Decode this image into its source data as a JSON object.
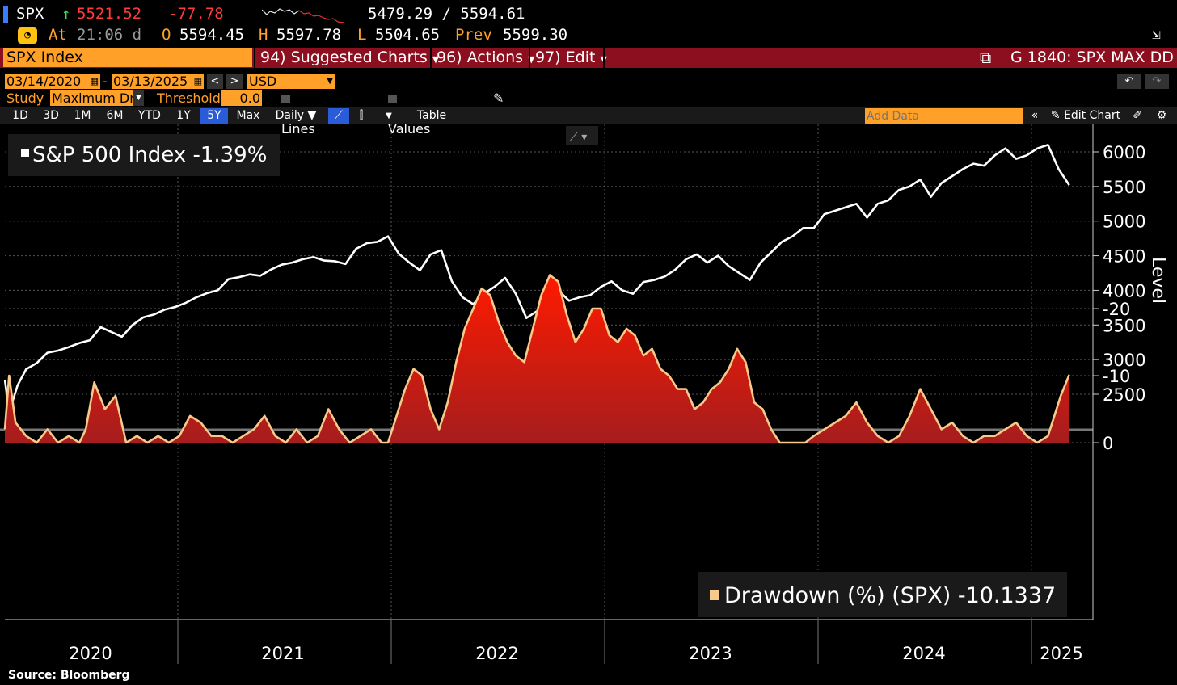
{
  "quote": {
    "symbol": "SPX",
    "last": "5521.52",
    "change": "-77.78",
    "range": "5479.29 / 5594.61",
    "at_label": "At",
    "time": "21:06 d",
    "open_label": "O",
    "open": "5594.45",
    "high_label": "H",
    "high": "5597.78",
    "low_label": "L",
    "low": "5504.65",
    "prev_label": "Prev",
    "prev": "5599.30"
  },
  "toolbar": {
    "ticker": "SPX Index",
    "suggested": "94) Suggested Charts",
    "actions": "96) Actions",
    "edit": "97) Edit",
    "chart_code": "G 1840: SPX MAX DD"
  },
  "settings": {
    "start_date": "03/14/2020",
    "dash": "-",
    "end_date": "03/13/2025",
    "currency": "USD",
    "study_label": "Study",
    "study_value": "Maximum Dr",
    "threshold_label": "Threshold",
    "threshold_value": "0.0",
    "show_lines": "Show Lines",
    "show_values": "Show Values"
  },
  "tabs": {
    "periods": [
      "1D",
      "3D",
      "1M",
      "6M",
      "YTD",
      "1Y",
      "5Y",
      "Max"
    ],
    "active": "5Y",
    "frequency": "Daily",
    "table": "Table",
    "add_data_placeholder": "Add Data",
    "edit_chart": "Edit Chart"
  },
  "source": "Source: Bloomberg",
  "colors": {
    "background": "#000000",
    "price_line": "#ffffff",
    "drawdown_line": "#f7c98b",
    "drawdown_fill_top": "#ff1a00",
    "drawdown_fill_bottom": "#b5201a",
    "accent_orange": "#ffa028",
    "toolbar_red": "#8c0f1f"
  },
  "chart_data": [
    {
      "type": "line",
      "legend": "S&P 500 Index -1.39%",
      "ylabel": "Level",
      "yticks": [
        2500,
        3000,
        3500,
        4000,
        4500,
        5000,
        5500,
        6000
      ],
      "ylim": [
        2150,
        6250
      ],
      "xlim": [
        2020.2,
        2025.3
      ],
      "xticks": [
        "2020",
        "2021",
        "2022",
        "2023",
        "2024",
        "2025"
      ],
      "grid": true,
      "legend_position": "top-left",
      "series": [
        {
          "x": [
            2020.2,
            2020.22,
            2020.26,
            2020.3,
            2020.35,
            2020.4,
            2020.45,
            2020.5,
            2020.55,
            2020.6,
            2020.65,
            2020.7,
            2020.75,
            2020.8,
            2020.85,
            2020.9,
            2020.95,
            2021.0,
            2021.05,
            2021.1,
            2021.15,
            2021.2,
            2021.25,
            2021.3,
            2021.35,
            2021.4,
            2021.45,
            2021.5,
            2021.55,
            2021.6,
            2021.65,
            2021.7,
            2021.75,
            2021.8,
            2021.85,
            2021.9,
            2021.95,
            2022.0,
            2022.05,
            2022.1,
            2022.15,
            2022.2,
            2022.25,
            2022.3,
            2022.35,
            2022.4,
            2022.45,
            2022.5,
            2022.55,
            2022.6,
            2022.65,
            2022.7,
            2022.75,
            2022.8,
            2022.85,
            2022.9,
            2022.95,
            2023.0,
            2023.05,
            2023.1,
            2023.15,
            2023.2,
            2023.25,
            2023.3,
            2023.35,
            2023.4,
            2023.45,
            2023.5,
            2023.55,
            2023.6,
            2023.65,
            2023.7,
            2023.75,
            2023.8,
            2023.85,
            2023.9,
            2023.95,
            2024.0,
            2024.05,
            2024.1,
            2024.15,
            2024.2,
            2024.25,
            2024.3,
            2024.35,
            2024.4,
            2024.45,
            2024.5,
            2024.55,
            2024.6,
            2024.65,
            2024.7,
            2024.75,
            2024.8,
            2024.85,
            2024.9,
            2024.95,
            2025.0,
            2025.05,
            2025.1,
            2025.15,
            2025.2
          ],
          "y": [
            2710,
            2240,
            2630,
            2860,
            2950,
            3100,
            3130,
            3180,
            3240,
            3280,
            3470,
            3400,
            3330,
            3500,
            3610,
            3650,
            3720,
            3760,
            3820,
            3900,
            3960,
            4000,
            4160,
            4190,
            4230,
            4210,
            4300,
            4370,
            4400,
            4450,
            4480,
            4430,
            4420,
            4380,
            4600,
            4680,
            4700,
            4780,
            4530,
            4400,
            4290,
            4520,
            4580,
            4130,
            3900,
            3800,
            3950,
            4050,
            4180,
            3950,
            3600,
            3700,
            3950,
            4000,
            3850,
            3900,
            3930,
            4050,
            4130,
            4000,
            3950,
            4120,
            4150,
            4200,
            4300,
            4450,
            4520,
            4400,
            4500,
            4350,
            4250,
            4150,
            4400,
            4550,
            4700,
            4780,
            4900,
            4900,
            5100,
            5150,
            5200,
            5250,
            5050,
            5250,
            5300,
            5450,
            5500,
            5600,
            5350,
            5550,
            5650,
            5750,
            5830,
            5800,
            5950,
            6050,
            5900,
            5950,
            6050,
            6100,
            5750,
            5520
          ],
          "color": "#ffffff"
        }
      ]
    },
    {
      "type": "area",
      "legend": "Drawdown (%) (SPX) -10.1337",
      "yticks": [
        0,
        -10,
        -20
      ],
      "ylim": [
        -26,
        0.8
      ],
      "xlim": [
        2020.2,
        2025.3
      ],
      "grid": true,
      "legend_position": "bottom-right",
      "series": [
        {
          "x": [
            2020.2,
            2020.22,
            2020.25,
            2020.3,
            2020.35,
            2020.4,
            2020.45,
            2020.5,
            2020.55,
            2020.58,
            2020.62,
            2020.67,
            2020.72,
            2020.77,
            2020.82,
            2020.87,
            2020.92,
            2020.97,
            2021.02,
            2021.07,
            2021.12,
            2021.17,
            2021.22,
            2021.27,
            2021.32,
            2021.37,
            2021.42,
            2021.47,
            2021.52,
            2021.57,
            2021.62,
            2021.67,
            2021.72,
            2021.77,
            2021.82,
            2021.87,
            2021.92,
            2021.97,
            2022.0,
            2022.04,
            2022.08,
            2022.12,
            2022.16,
            2022.2,
            2022.24,
            2022.28,
            2022.32,
            2022.36,
            2022.4,
            2022.44,
            2022.48,
            2022.52,
            2022.56,
            2022.6,
            2022.64,
            2022.68,
            2022.72,
            2022.76,
            2022.8,
            2022.84,
            2022.88,
            2022.92,
            2022.96,
            2023.0,
            2023.04,
            2023.08,
            2023.12,
            2023.16,
            2023.2,
            2023.24,
            2023.28,
            2023.32,
            2023.36,
            2023.4,
            2023.44,
            2023.48,
            2023.52,
            2023.56,
            2023.6,
            2023.64,
            2023.68,
            2023.72,
            2023.76,
            2023.8,
            2023.84,
            2023.88,
            2023.92,
            2023.96,
            2024.0,
            2024.05,
            2024.1,
            2024.15,
            2024.2,
            2024.25,
            2024.3,
            2024.35,
            2024.4,
            2024.45,
            2024.5,
            2024.55,
            2024.6,
            2024.65,
            2024.7,
            2024.75,
            2024.8,
            2024.85,
            2024.9,
            2024.95,
            2025.0,
            2025.05,
            2025.1,
            2025.13,
            2025.16,
            2025.2
          ],
          "y": [
            -2,
            -10,
            -3,
            -1,
            0,
            -2,
            0,
            -1,
            0,
            -2,
            -9,
            -5,
            -7,
            0,
            -1,
            0,
            -1,
            0,
            -1,
            -4,
            -3,
            -1,
            -1,
            0,
            -1,
            -2,
            -4,
            -1,
            0,
            -2,
            0,
            -1,
            -5,
            -2,
            0,
            -1,
            -2,
            0,
            0,
            -4,
            -8,
            -11,
            -10,
            -5,
            -2,
            -6,
            -12,
            -17,
            -20,
            -23,
            -22,
            -18,
            -15,
            -13,
            -12,
            -17,
            -22,
            -25,
            -24,
            -19,
            -15,
            -17,
            -20,
            -20,
            -16,
            -15,
            -17,
            -16,
            -13,
            -14,
            -11,
            -10,
            -8,
            -8,
            -5,
            -6,
            -8,
            -9,
            -11,
            -14,
            -12,
            -6,
            -5,
            -2,
            0,
            0,
            0,
            0,
            -1,
            -2,
            -3,
            -4,
            -6,
            -3,
            -1,
            0,
            -1,
            -4,
            -8,
            -5,
            -2,
            -3,
            -1,
            0,
            -1,
            -1,
            -2,
            -3,
            -1,
            0,
            -1,
            -4,
            -7,
            -10.13
          ],
          "color": "#f7c98b"
        }
      ]
    }
  ]
}
